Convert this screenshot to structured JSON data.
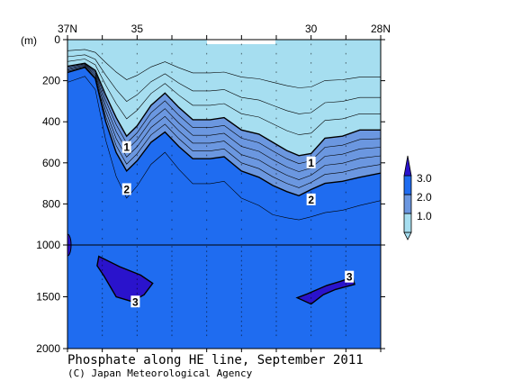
{
  "chart_data": {
    "type": "heatmap",
    "title": "Phosphate along HE line, September 2011",
    "credit": "(C) Japan Meteorological Agency",
    "ylabel": "(m)",
    "x_ticks": [
      "37N",
      "35",
      "30",
      "28N"
    ],
    "x_tick_values": [
      37,
      35,
      30,
      28
    ],
    "xlim": [
      37,
      28
    ],
    "y_ticks": [
      "0",
      "200",
      "400",
      "600",
      "800",
      "1000",
      "1500",
      "2000"
    ],
    "y_tick_values": [
      0,
      200,
      400,
      600,
      800,
      1000,
      1500,
      2000
    ],
    "ylim": [
      0,
      2000
    ],
    "y_scale": "piecewise: 0-1000 m and 1000-2000 m",
    "legend": {
      "placement": "right",
      "levels": [
        "1.0",
        "2.0",
        "3.0"
      ],
      "colors": [
        "#a6def0",
        "#6b97e0",
        "#1f6cf0",
        "#2a13cc"
      ]
    },
    "contour_labels": [
      {
        "text": "1",
        "lat": 35.3,
        "depth": 525
      },
      {
        "text": "1",
        "lat": 30.0,
        "depth": 600
      },
      {
        "text": "2",
        "lat": 35.3,
        "depth": 730
      },
      {
        "text": "2",
        "lat": 30.0,
        "depth": 780
      },
      {
        "text": "3",
        "lat": 28.9,
        "depth": 1310
      },
      {
        "text": "3",
        "lat": 35.05,
        "depth": 1550
      }
    ],
    "contours": {
      "c1": [
        [
          37,
          130
        ],
        [
          36.5,
          115
        ],
        [
          36.2,
          150
        ],
        [
          35.9,
          270
        ],
        [
          35.6,
          380
        ],
        [
          35.3,
          470
        ],
        [
          35.0,
          420
        ],
        [
          34.6,
          320
        ],
        [
          34.2,
          260
        ],
        [
          33.8,
          330
        ],
        [
          33.4,
          390
        ],
        [
          32.9,
          390
        ],
        [
          32.5,
          380
        ],
        [
          32.0,
          440
        ],
        [
          31.5,
          460
        ],
        [
          31.1,
          500
        ],
        [
          30.7,
          540
        ],
        [
          30.35,
          565
        ],
        [
          30.0,
          555
        ],
        [
          29.6,
          480
        ],
        [
          29.1,
          470
        ],
        [
          28.6,
          440
        ],
        [
          28,
          440
        ]
      ],
      "c2": [
        [
          37,
          160
        ],
        [
          36.5,
          135
        ],
        [
          36.2,
          190
        ],
        [
          35.9,
          400
        ],
        [
          35.6,
          550
        ],
        [
          35.3,
          640
        ],
        [
          35.0,
          590
        ],
        [
          34.6,
          500
        ],
        [
          34.2,
          450
        ],
        [
          33.8,
          520
        ],
        [
          33.4,
          580
        ],
        [
          32.9,
          580
        ],
        [
          32.5,
          570
        ],
        [
          32.0,
          640
        ],
        [
          31.5,
          670
        ],
        [
          31.1,
          710
        ],
        [
          30.7,
          740
        ],
        [
          30.35,
          760
        ],
        [
          30.0,
          730
        ],
        [
          29.6,
          700
        ],
        [
          29.1,
          690
        ],
        [
          28.6,
          670
        ],
        [
          28,
          650
        ]
      ],
      "p3a": [
        [
          36.1,
          1110
        ],
        [
          35.5,
          1210
        ],
        [
          34.9,
          1290
        ],
        [
          34.55,
          1370
        ],
        [
          34.8,
          1480
        ],
        [
          35.15,
          1545
        ],
        [
          35.6,
          1500
        ],
        [
          35.95,
          1300
        ],
        [
          36.15,
          1200
        ]
      ],
      "p3b": [
        [
          30.1,
          1470
        ],
        [
          29.55,
          1390
        ],
        [
          29.15,
          1350
        ],
        [
          28.8,
          1310
        ],
        [
          28.75,
          1380
        ],
        [
          29.3,
          1430
        ],
        [
          29.65,
          1480
        ],
        [
          30.0,
          1570
        ],
        [
          30.4,
          1510
        ]
      ]
    }
  }
}
